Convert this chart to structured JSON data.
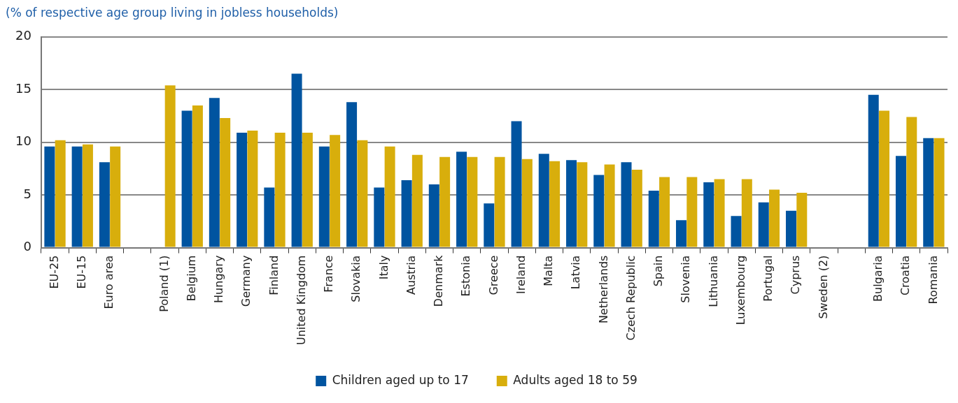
{
  "chart_data": {
    "type": "bar",
    "subtitle": "(% of respective age group living in jobless households)",
    "categories": [
      "EU-25",
      "EU-15",
      "Euro area",
      null,
      "Poland (1)",
      "Belgium",
      "Hungary",
      "Germany",
      "Finland",
      "United Kingdom",
      "France",
      "Slovakia",
      "Italy",
      "Austria",
      "Denmark",
      "Estonia",
      "Greece",
      "Ireland",
      "Malta",
      "Latvia",
      "Netherlands",
      "Czech Republic",
      "Spain",
      "Slovenia",
      "Lithuania",
      "Luxembourg",
      "Portugal",
      "Cyprus",
      "Sweden (2)",
      null,
      "Bulgaria",
      "Croatia",
      "Romania"
    ],
    "series": [
      {
        "name": "Children aged up to 17",
        "color": "#0054a0",
        "values": [
          9.6,
          9.6,
          8.1,
          null,
          null,
          13.0,
          14.2,
          10.9,
          5.7,
          16.5,
          9.6,
          13.8,
          5.7,
          6.4,
          6.0,
          9.1,
          4.2,
          12.0,
          8.9,
          8.3,
          6.9,
          8.1,
          5.4,
          2.6,
          6.2,
          3.0,
          4.3,
          3.5,
          null,
          null,
          14.5,
          8.7,
          10.4
        ]
      },
      {
        "name": "Adults aged 18 to 59",
        "color": "#d8ae0c",
        "values": [
          10.2,
          9.8,
          9.6,
          null,
          15.4,
          13.5,
          12.3,
          11.1,
          10.9,
          10.9,
          10.7,
          10.2,
          9.6,
          8.8,
          8.6,
          8.6,
          8.6,
          8.4,
          8.2,
          8.1,
          7.9,
          7.4,
          6.7,
          6.7,
          6.5,
          6.5,
          5.5,
          5.2,
          null,
          null,
          13.0,
          12.4,
          10.4
        ]
      }
    ],
    "ylim": [
      0,
      20
    ],
    "yticks": [
      0,
      5,
      10,
      15,
      20
    ],
    "grid": "y",
    "legend": "bottom"
  }
}
